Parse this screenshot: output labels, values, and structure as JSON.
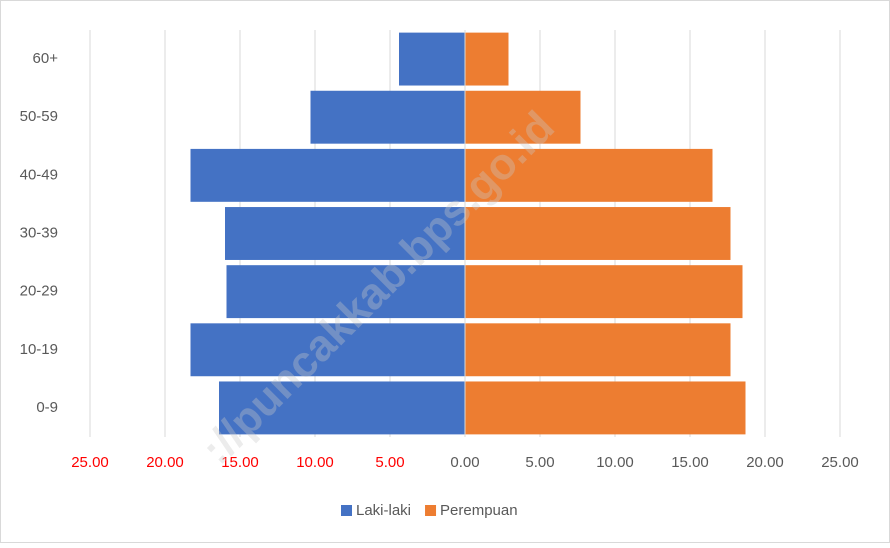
{
  "chart_data": {
    "type": "pyramid",
    "categories": [
      "0-9",
      "10-19",
      "20-29",
      "30-39",
      "40-49",
      "50-59",
      "60+"
    ],
    "series": [
      {
        "name": "Laki-laki",
        "color": "#4472c4",
        "values": [
          -16.4,
          -18.3,
          -15.9,
          -16.0,
          -18.3,
          -10.3,
          -4.4
        ]
      },
      {
        "name": "Perempuan",
        "color": "#ed7d31",
        "values": [
          18.7,
          17.7,
          18.5,
          17.7,
          16.5,
          7.7,
          2.9
        ]
      }
    ],
    "xlim": [
      -25,
      25
    ],
    "xticks": [
      {
        "value": -25,
        "label": "25.00"
      },
      {
        "value": -20,
        "label": "20.00"
      },
      {
        "value": -15,
        "label": "15.00"
      },
      {
        "value": -10,
        "label": "10.00"
      },
      {
        "value": -5,
        "label": "5.00"
      },
      {
        "value": 0,
        "label": "0.00"
      },
      {
        "value": 5,
        "label": "5.00"
      },
      {
        "value": 10,
        "label": "10.00"
      },
      {
        "value": 15,
        "label": "15.00"
      },
      {
        "value": 20,
        "label": "20.00"
      },
      {
        "value": 25,
        "label": "25.00"
      }
    ],
    "tick_label_color": "#595959",
    "negative_tick_label_color": "#ff0000",
    "grid": true,
    "legend": "bottom",
    "watermark": "://puncakkab.bps.go.id"
  }
}
